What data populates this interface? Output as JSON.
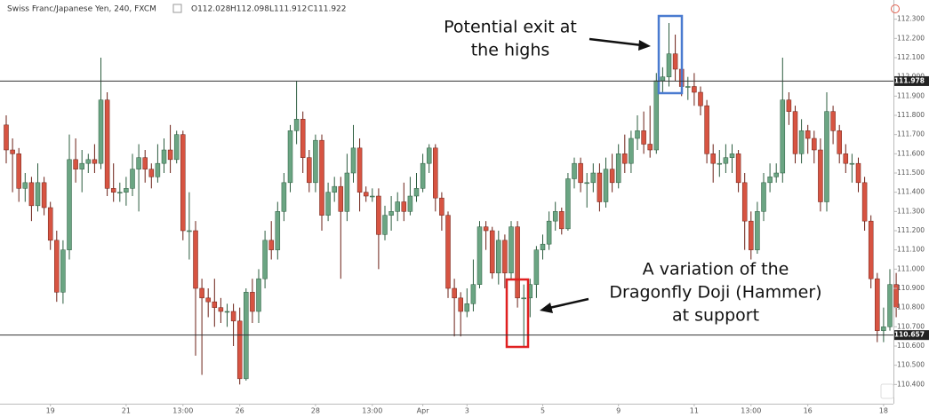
{
  "chart_data": {
    "type": "candlestick",
    "title": "Swiss Franc/Japanese Yen, 240, FXCM",
    "ohlc_labels": [
      "O112.028",
      "H112.098",
      "L111.912",
      "C111.922"
    ],
    "up_color": "#6ba583",
    "down_color": "#d75442",
    "ylim": [
      110.3,
      112.4
    ],
    "yticks": [
      {
        "value": 110.4,
        "label": "110.400"
      },
      {
        "value": 110.5,
        "label": "110.500"
      },
      {
        "value": 110.6,
        "label": "110.600"
      },
      {
        "value": 110.7,
        "label": "110.700"
      },
      {
        "value": 110.8,
        "label": "110.800"
      },
      {
        "value": 110.9,
        "label": "110.900"
      },
      {
        "value": 111.0,
        "label": "111.000"
      },
      {
        "value": 111.1,
        "label": "111.100"
      },
      {
        "value": 111.2,
        "label": "111.200"
      },
      {
        "value": 111.3,
        "label": "111.300"
      },
      {
        "value": 111.4,
        "label": "111.400"
      },
      {
        "value": 111.5,
        "label": "111.500"
      },
      {
        "value": 111.6,
        "label": "111.600"
      },
      {
        "value": 111.7,
        "label": "111.700"
      },
      {
        "value": 111.8,
        "label": "111.800"
      },
      {
        "value": 111.9,
        "label": "111.900"
      },
      {
        "value": 112.0,
        "label": "112.000"
      },
      {
        "value": 112.1,
        "label": "112.100"
      },
      {
        "value": 112.2,
        "label": "112.200"
      },
      {
        "value": 112.3,
        "label": "112.300"
      }
    ],
    "hlines": [
      {
        "value": 111.978,
        "label": "111.978"
      },
      {
        "value": 110.657,
        "label": "110.657"
      }
    ],
    "annotations": [
      {
        "lines": [
          "Potential exit at",
          "the highs"
        ]
      },
      {
        "lines": [
          "A variation of the",
          "Dragonfly Doji (Hammer)",
          "at support"
        ]
      }
    ],
    "categories": [
      null,
      null,
      null,
      null,
      null,
      null,
      null,
      "19",
      null,
      null,
      null,
      null,
      null,
      null,
      null,
      null,
      null,
      null,
      null,
      "21",
      null,
      null,
      null,
      null,
      null,
      null,
      null,
      null,
      "13:00",
      null,
      null,
      null,
      null,
      null,
      null,
      null,
      null,
      "26",
      null,
      null,
      null,
      null,
      null,
      null,
      null,
      null,
      null,
      null,
      null,
      "28",
      null,
      null,
      null,
      null,
      null,
      null,
      null,
      null,
      "13:00",
      null,
      null,
      null,
      null,
      null,
      null,
      null,
      "Apr",
      null,
      null,
      null,
      null,
      null,
      null,
      "3",
      null,
      null,
      null,
      null,
      null,
      null,
      null,
      null,
      null,
      null,
      null,
      "5",
      null,
      null,
      null,
      null,
      null,
      null,
      null,
      null,
      null,
      null,
      null,
      "9",
      null,
      null,
      null,
      null,
      null,
      null,
      null,
      null,
      null,
      null,
      null,
      "11",
      null,
      null,
      null,
      null,
      null,
      null,
      null,
      null,
      "13:00",
      null,
      null,
      null,
      null,
      null,
      null,
      null,
      null,
      "16",
      null,
      null,
      null,
      null,
      null,
      null,
      null,
      null,
      null,
      null,
      null,
      "18",
      null,
      null
    ],
    "open": [
      111.75,
      111.62,
      111.6,
      111.42,
      111.45,
      111.33,
      111.45,
      111.32,
      111.15,
      110.88,
      111.1,
      111.57,
      111.52,
      111.55,
      111.57,
      111.55,
      111.88,
      111.42,
      111.4,
      111.4,
      111.42,
      111.52,
      111.58,
      111.52,
      111.48,
      111.55,
      111.62,
      111.57,
      111.7,
      111.2,
      111.2,
      110.9,
      110.85,
      110.83,
      110.8,
      110.78,
      110.78,
      110.73,
      110.43,
      110.88,
      110.78,
      110.95,
      111.15,
      111.1,
      111.3,
      111.45,
      111.72,
      111.78,
      111.58,
      111.45,
      111.67,
      111.28,
      111.4,
      111.43,
      111.3,
      111.5,
      111.63,
      111.4,
      111.38,
      111.38,
      111.18,
      111.28,
      111.3,
      111.35,
      111.3,
      111.38,
      111.42,
      111.55,
      111.63,
      111.37,
      111.28,
      110.9,
      110.85,
      110.78,
      110.82,
      110.92,
      111.22,
      111.2,
      110.98,
      111.15,
      110.98,
      111.22,
      110.85,
      110.85,
      110.92,
      111.1,
      111.13,
      111.25,
      111.3,
      111.21,
      111.47,
      111.55,
      111.45,
      111.45,
      111.5,
      111.35,
      111.52,
      111.45,
      111.6,
      111.55,
      111.68,
      111.72,
      111.65,
      111.62,
      111.98,
      112.0,
      112.12,
      112.04,
      111.95,
      111.95,
      111.92,
      111.85,
      111.6,
      111.55,
      111.55,
      111.58,
      111.6,
      111.45,
      111.25,
      111.1,
      111.3,
      111.45,
      111.48,
      111.5,
      111.88,
      111.82,
      111.6,
      111.72,
      111.68,
      111.62,
      111.35,
      111.82,
      111.72,
      111.6,
      111.55,
      111.55,
      111.45,
      111.25,
      110.95,
      110.68,
      110.7,
      110.92
    ],
    "high": [
      111.8,
      111.68,
      111.63,
      111.5,
      111.48,
      111.55,
      111.48,
      111.35,
      111.2,
      111.15,
      111.7,
      111.68,
      111.62,
      111.6,
      111.65,
      112.1,
      111.92,
      111.55,
      111.45,
      111.48,
      111.6,
      111.65,
      111.62,
      111.55,
      111.65,
      111.68,
      111.75,
      111.72,
      111.72,
      111.4,
      111.25,
      110.95,
      110.9,
      110.95,
      110.85,
      110.82,
      110.82,
      110.8,
      110.9,
      110.95,
      111.0,
      111.2,
      111.25,
      111.35,
      111.5,
      111.75,
      111.98,
      111.82,
      111.62,
      111.7,
      111.7,
      111.45,
      111.48,
      111.48,
      111.6,
      111.75,
      111.68,
      111.43,
      111.42,
      111.42,
      111.33,
      111.38,
      111.4,
      111.45,
      111.48,
      111.5,
      111.6,
      111.65,
      111.65,
      111.4,
      111.3,
      110.95,
      110.88,
      110.9,
      111.05,
      111.25,
      111.25,
      111.22,
      111.2,
      111.18,
      111.25,
      111.25,
      110.92,
      110.95,
      111.12,
      111.18,
      111.3,
      111.35,
      111.32,
      111.5,
      111.58,
      111.58,
      111.5,
      111.55,
      111.55,
      111.58,
      111.6,
      111.65,
      111.7,
      111.72,
      111.8,
      111.82,
      111.85,
      112.02,
      112.05,
      112.28,
      112.22,
      112.1,
      112.0,
      112.02,
      111.95,
      111.88,
      111.65,
      111.62,
      111.65,
      111.65,
      111.62,
      111.5,
      111.3,
      111.35,
      111.5,
      111.55,
      111.55,
      112.1,
      111.92,
      111.85,
      111.78,
      111.75,
      111.72,
      111.68,
      111.92,
      111.85,
      111.75,
      111.65,
      111.6,
      111.58,
      111.48,
      111.28,
      110.98,
      110.8,
      111.0,
      110.98
    ],
    "low": [
      111.55,
      111.4,
      111.35,
      111.35,
      111.25,
      111.3,
      111.28,
      111.1,
      110.83,
      110.82,
      111.05,
      111.45,
      111.4,
      111.5,
      111.5,
      111.52,
      111.38,
      111.35,
      111.35,
      111.33,
      111.38,
      111.3,
      111.45,
      111.42,
      111.45,
      111.5,
      111.5,
      111.55,
      111.15,
      111.05,
      110.55,
      110.45,
      110.75,
      110.7,
      110.72,
      110.7,
      110.6,
      110.4,
      110.42,
      110.72,
      110.72,
      110.9,
      111.05,
      111.05,
      111.25,
      111.4,
      111.65,
      111.5,
      111.4,
      111.4,
      111.2,
      111.25,
      111.35,
      110.95,
      111.25,
      111.45,
      111.3,
      111.35,
      111.35,
      111.0,
      111.15,
      111.2,
      111.25,
      111.25,
      111.28,
      111.35,
      111.4,
      111.5,
      111.3,
      111.2,
      110.85,
      110.65,
      110.65,
      110.75,
      110.78,
      110.9,
      111.1,
      110.95,
      110.92,
      110.9,
      110.95,
      110.8,
      110.6,
      110.75,
      110.85,
      111.05,
      111.1,
      111.2,
      111.18,
      111.2,
      111.42,
      111.4,
      111.32,
      111.4,
      111.3,
      111.32,
      111.4,
      111.42,
      111.5,
      111.5,
      111.62,
      111.6,
      111.58,
      111.6,
      111.92,
      111.95,
      111.98,
      111.9,
      111.88,
      111.85,
      111.8,
      111.55,
      111.45,
      111.48,
      111.5,
      111.5,
      111.4,
      111.1,
      111.05,
      111.08,
      111.25,
      111.4,
      111.45,
      111.45,
      111.75,
      111.55,
      111.55,
      111.6,
      111.55,
      111.3,
      111.3,
      111.65,
      111.55,
      111.5,
      111.45,
      111.4,
      111.2,
      110.9,
      110.62,
      110.62,
      110.68,
      110.75
    ],
    "close": [
      111.62,
      111.6,
      111.42,
      111.45,
      111.33,
      111.45,
      111.32,
      111.15,
      110.88,
      111.1,
      111.57,
      111.52,
      111.55,
      111.57,
      111.55,
      111.88,
      111.42,
      111.4,
      111.4,
      111.42,
      111.52,
      111.58,
      111.52,
      111.48,
      111.55,
      111.62,
      111.57,
      111.7,
      111.2,
      111.2,
      110.9,
      110.85,
      110.83,
      110.8,
      110.78,
      110.78,
      110.73,
      110.43,
      110.88,
      110.78,
      110.95,
      111.15,
      111.1,
      111.3,
      111.45,
      111.72,
      111.78,
      111.58,
      111.45,
      111.67,
      111.28,
      111.4,
      111.43,
      111.3,
      111.5,
      111.63,
      111.4,
      111.38,
      111.38,
      111.18,
      111.28,
      111.3,
      111.35,
      111.3,
      111.38,
      111.42,
      111.55,
      111.63,
      111.37,
      111.28,
      110.9,
      110.85,
      110.78,
      110.82,
      110.92,
      111.22,
      111.2,
      110.98,
      111.15,
      110.98,
      111.22,
      110.85,
      110.85,
      110.92,
      111.1,
      111.13,
      111.25,
      111.3,
      111.21,
      111.47,
      111.55,
      111.45,
      111.45,
      111.5,
      111.35,
      111.52,
      111.45,
      111.6,
      111.55,
      111.68,
      111.72,
      111.65,
      111.62,
      111.98,
      112.0,
      112.12,
      112.04,
      111.95,
      111.95,
      111.92,
      111.85,
      111.6,
      111.55,
      111.55,
      111.58,
      111.6,
      111.45,
      111.25,
      111.1,
      111.3,
      111.45,
      111.48,
      111.5,
      111.88,
      111.82,
      111.6,
      111.72,
      111.68,
      111.62,
      111.35,
      111.82,
      111.72,
      111.6,
      111.55,
      111.55,
      111.45,
      111.25,
      110.95,
      110.68,
      110.7,
      110.92,
      110.8
    ]
  }
}
